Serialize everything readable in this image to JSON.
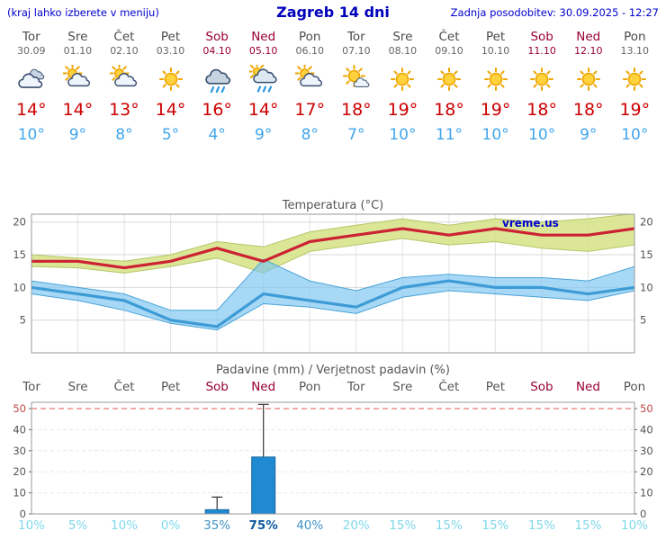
{
  "header": {
    "left_note": "(kraj lahko izberete v meniju)",
    "title": "Zagreb 14 dni",
    "last_update": "Zadnja posodobitev: 30.09.2025 - 12:27"
  },
  "watermark": "vreme.us",
  "colors": {
    "header_blue": "#0000cc",
    "weekend_red": "#990033",
    "tmax_red": "#cc0000",
    "tmin_blue": "#42a5ec",
    "temp_line_red": "#cc2233",
    "temp_band_yellow": "rgba(215,228,140,0.9)",
    "temp_band_edge": "#b6c565",
    "min_line_blue": "#3d9bd6",
    "min_band_blue": "rgba(120,195,240,0.65)",
    "min_band_edge": "#4aa3d8",
    "bar_blue": "#1f8ad2",
    "bar_border": "#14669e",
    "prob_light": "#7fd8ea",
    "prob_mid": "#3f93c4",
    "prob_strong": "#0a58a0"
  },
  "days": [
    {
      "name": "Tor",
      "date": "30.09",
      "weekend": false,
      "icon": "cloudy",
      "tmax": 14,
      "tmin": 10
    },
    {
      "name": "Sre",
      "date": "01.10",
      "weekend": false,
      "icon": "partly-cloudy",
      "tmax": 14,
      "tmin": 9
    },
    {
      "name": "Čet",
      "date": "02.10",
      "weekend": false,
      "icon": "partly-cloudy",
      "tmax": 13,
      "tmin": 8
    },
    {
      "name": "Pet",
      "date": "03.10",
      "weekend": false,
      "icon": "sunny",
      "tmax": 14,
      "tmin": 5
    },
    {
      "name": "Sob",
      "date": "04.10",
      "weekend": true,
      "icon": "rain",
      "tmax": 16,
      "tmin": 4
    },
    {
      "name": "Ned",
      "date": "05.10",
      "weekend": true,
      "icon": "rain-sun",
      "tmax": 14,
      "tmin": 9
    },
    {
      "name": "Pon",
      "date": "06.10",
      "weekend": false,
      "icon": "partly-cloudy",
      "tmax": 17,
      "tmin": 8
    },
    {
      "name": "Tor",
      "date": "07.10",
      "weekend": false,
      "icon": "mostly-sunny",
      "tmax": 18,
      "tmin": 7
    },
    {
      "name": "Sre",
      "date": "08.10",
      "weekend": false,
      "icon": "sunny",
      "tmax": 19,
      "tmin": 10
    },
    {
      "name": "Čet",
      "date": "09.10",
      "weekend": false,
      "icon": "sunny",
      "tmax": 18,
      "tmin": 11
    },
    {
      "name": "Pet",
      "date": "10.10",
      "weekend": false,
      "icon": "sunny",
      "tmax": 19,
      "tmin": 10
    },
    {
      "name": "Sob",
      "date": "11.10",
      "weekend": true,
      "icon": "sunny",
      "tmax": 18,
      "tmin": 10
    },
    {
      "name": "Ned",
      "date": "12.10",
      "weekend": true,
      "icon": "sunny",
      "tmax": 18,
      "tmin": 9
    },
    {
      "name": "Pon",
      "date": "13.10",
      "weekend": false,
      "icon": "sunny",
      "tmax": 19,
      "tmin": 10
    }
  ],
  "chart_data": [
    {
      "type": "line",
      "title": "Temperatura (°C)",
      "categories": [
        "Tor 30.09",
        "Sre 01.10",
        "Čet 02.10",
        "Pet 03.10",
        "Sob 04.10",
        "Ned 05.10",
        "Pon 06.10",
        "Tor 07.10",
        "Sre 08.10",
        "Čet 09.10",
        "Pet 10.10",
        "Sob 11.10",
        "Ned 12.10",
        "Pon 13.10"
      ],
      "series": [
        {
          "name": "max",
          "values": [
            14,
            14,
            13,
            14,
            16,
            14,
            17,
            18,
            19,
            18,
            19,
            18,
            18,
            19
          ]
        },
        {
          "name": "max_upper",
          "values": [
            15,
            14.5,
            14,
            15,
            17,
            16.2,
            18.5,
            19.5,
            20.5,
            19.5,
            20.5,
            20,
            20.5,
            21.3
          ]
        },
        {
          "name": "max_lower",
          "values": [
            13.2,
            13,
            12.2,
            13.2,
            14.5,
            12.2,
            15.5,
            16.5,
            17.5,
            16.5,
            17,
            16,
            15.5,
            16.5
          ]
        },
        {
          "name": "min",
          "values": [
            10,
            9,
            8,
            5,
            4,
            9,
            8,
            7,
            10,
            11,
            10,
            10,
            9,
            10
          ]
        },
        {
          "name": "min_upper",
          "values": [
            11,
            10,
            9,
            6.5,
            6.5,
            14.3,
            11,
            9.5,
            11.5,
            12,
            11.5,
            11.5,
            11,
            13.2
          ]
        },
        {
          "name": "min_lower",
          "values": [
            9,
            8,
            6.5,
            4.5,
            3.5,
            7.5,
            7,
            6,
            8.5,
            9.5,
            9,
            8.5,
            8,
            9.5
          ]
        }
      ],
      "yticks": [
        5,
        10,
        15,
        20
      ],
      "ylim": [
        0,
        21.2
      ],
      "grid": true,
      "legend": "none"
    },
    {
      "type": "bar",
      "title": "Padavine (mm) / Verjetnost padavin (%)",
      "categories": [
        "Tor",
        "Sre",
        "Čet",
        "Pet",
        "Sob",
        "Ned",
        "Pon",
        "Tor",
        "Sre",
        "Čet",
        "Pet",
        "Sob",
        "Ned",
        "Pon"
      ],
      "weekend": [
        false,
        false,
        false,
        false,
        true,
        true,
        false,
        false,
        false,
        false,
        false,
        true,
        true,
        false
      ],
      "precip_mm": [
        0,
        0,
        0,
        0,
        2,
        27,
        0,
        0,
        0,
        0,
        0,
        0,
        0,
        0
      ],
      "range_mm": [
        [
          0,
          0
        ],
        [
          0,
          0
        ],
        [
          0,
          0
        ],
        [
          0,
          0
        ],
        [
          0.3,
          8
        ],
        [
          4,
          52
        ],
        [
          0,
          0
        ],
        [
          0,
          0
        ],
        [
          0,
          0
        ],
        [
          0,
          0
        ],
        [
          0,
          0
        ],
        [
          0,
          0
        ],
        [
          0,
          0
        ],
        [
          0,
          0
        ]
      ],
      "probability_pct": [
        10,
        5,
        10,
        0,
        35,
        75,
        40,
        20,
        15,
        15,
        15,
        15,
        15,
        10
      ],
      "yticks": [
        0,
        10,
        20,
        30,
        40,
        50
      ],
      "ylim": [
        0,
        53
      ],
      "grid": true
    }
  ]
}
